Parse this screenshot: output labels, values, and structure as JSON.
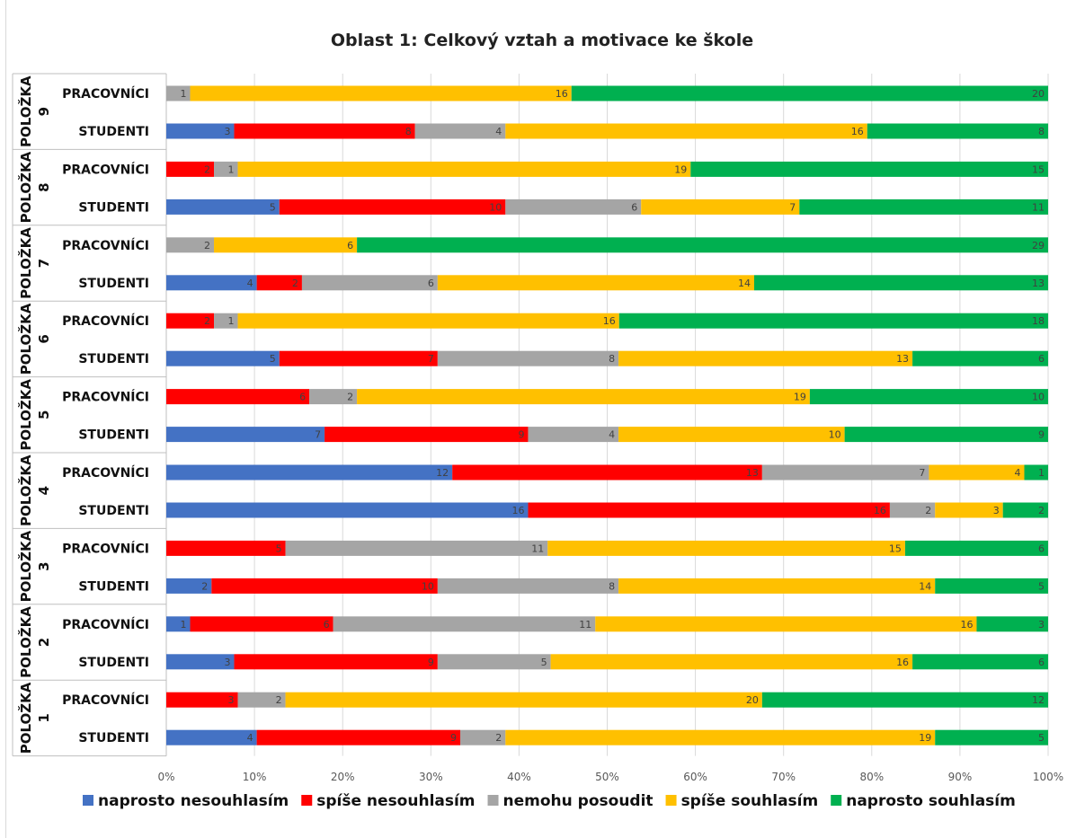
{
  "chart_data": {
    "type": "bar",
    "orientation": "horizontal",
    "stacked": "percent",
    "title": "Oblast 1: Celkový vztah a motivace ke škole",
    "groups": [
      "POLOŽKA 9",
      "POLOŽKA 8",
      "POLOŽKA 7",
      "POLOŽKA 6",
      "POLOŽKA 5",
      "POLOŽKA 4",
      "POLOŽKA 3",
      "POLOŽKA 2",
      "POLOŽKA 1"
    ],
    "group_label_parts": [
      [
        "POLOŽKA",
        "9"
      ],
      [
        "POLOŽKA",
        "8"
      ],
      [
        "POLOŽKA",
        "7"
      ],
      [
        "POLOŽKA",
        "6"
      ],
      [
        "POLOŽKA",
        "5"
      ],
      [
        "POLOŽKA",
        "4"
      ],
      [
        "POLOŽKA",
        "3"
      ],
      [
        "POLOŽKA",
        "2"
      ],
      [
        "POLOŽKA",
        "1"
      ]
    ],
    "subcategories": [
      "PRACOVNÍCI",
      "STUDENTI"
    ],
    "x_ticks": [
      "0%",
      "10%",
      "20%",
      "30%",
      "40%",
      "50%",
      "60%",
      "70%",
      "80%",
      "90%",
      "100%"
    ],
    "xlim": [
      0,
      100
    ],
    "grid": true,
    "legend_position": "bottom",
    "series": [
      {
        "name": "naprosto nesouhlasím",
        "color": "#4472C4",
        "values": [
          [
            0,
            3
          ],
          [
            0,
            5
          ],
          [
            0,
            4
          ],
          [
            0,
            5
          ],
          [
            0,
            7
          ],
          [
            12,
            16
          ],
          [
            0,
            2
          ],
          [
            1,
            3
          ],
          [
            0,
            4
          ]
        ]
      },
      {
        "name": "spíše nesouhlasím",
        "color": "#FF0000",
        "values": [
          [
            0,
            8
          ],
          [
            2,
            10
          ],
          [
            0,
            2
          ],
          [
            2,
            7
          ],
          [
            6,
            9
          ],
          [
            13,
            16
          ],
          [
            5,
            10
          ],
          [
            6,
            9
          ],
          [
            3,
            9
          ]
        ]
      },
      {
        "name": "nemohu posoudit",
        "color": "#A5A5A5",
        "values": [
          [
            1,
            4
          ],
          [
            1,
            6
          ],
          [
            2,
            6
          ],
          [
            1,
            8
          ],
          [
            2,
            4
          ],
          [
            7,
            2
          ],
          [
            11,
            8
          ],
          [
            11,
            5
          ],
          [
            2,
            2
          ]
        ]
      },
      {
        "name": "spíše souhlasím",
        "color": "#FFC000",
        "values": [
          [
            16,
            16
          ],
          [
            19,
            7
          ],
          [
            6,
            14
          ],
          [
            16,
            13
          ],
          [
            19,
            10
          ],
          [
            4,
            3
          ],
          [
            15,
            14
          ],
          [
            16,
            16
          ],
          [
            20,
            19
          ]
        ]
      },
      {
        "name": "naprosto souhlasím",
        "color": "#00B050",
        "values": [
          [
            20,
            8
          ],
          [
            15,
            11
          ],
          [
            29,
            13
          ],
          [
            18,
            6
          ],
          [
            10,
            9
          ],
          [
            1,
            2
          ],
          [
            6,
            5
          ],
          [
            3,
            6
          ],
          [
            12,
            5
          ]
        ]
      }
    ]
  }
}
